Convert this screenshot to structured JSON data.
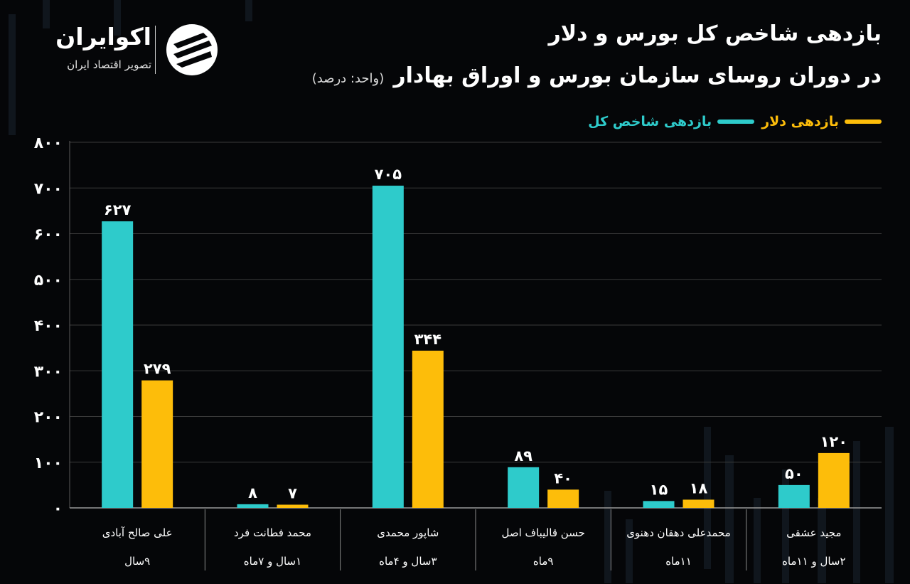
{
  "logo": {
    "name": "اکوایران",
    "tagline": "تصویر اقتصاد ایران"
  },
  "title": {
    "line1": "بازدهی شاخص کل بورس و دلار",
    "line2": "در دوران روسای سازمان بورس و اوراق بهادار",
    "unit": "(واحد: درصد)"
  },
  "colors": {
    "background": "#050608",
    "index": "#2ecbcb",
    "dollar": "#fdbd0a",
    "grid": "#3a3a3a"
  },
  "chart_data": {
    "type": "bar",
    "ylim": [
      0,
      800
    ],
    "yticks": [
      "۰",
      "۱۰۰",
      "۲۰۰",
      "۳۰۰",
      "۴۰۰",
      "۵۰۰",
      "۶۰۰",
      "۷۰۰",
      "۸۰۰"
    ],
    "grid": true,
    "legend_position": "top-right",
    "categories": [
      {
        "name": "علی صالح آبادی",
        "duration": "۹سال"
      },
      {
        "name": "محمد فطانت فرد",
        "duration": "۱سال و ۷ماه"
      },
      {
        "name": "شاپور محمدی",
        "duration": "۳سال و ۴ماه"
      },
      {
        "name": "حسن قالیباف اصل",
        "duration": "۹ماه"
      },
      {
        "name": "محمدعلی دهقان دهنوی",
        "duration": "۱۱ماه"
      },
      {
        "name": "مجید عشقی",
        "duration": "۲سال و ۱۱ماه"
      }
    ],
    "series": [
      {
        "name": "بازدهی شاخص کل",
        "color": "#2ecbcb",
        "values": [
          627,
          8,
          705,
          89,
          15,
          50
        ],
        "labels": [
          "۶۲۷",
          "۸",
          "۷۰۵",
          "۸۹",
          "۱۵",
          "۵۰"
        ]
      },
      {
        "name": "بازدهی دلار",
        "color": "#fdbd0a",
        "values": [
          279,
          7,
          344,
          40,
          18,
          120
        ],
        "labels": [
          "۲۷۹",
          "۷",
          "۳۴۴",
          "۴۰",
          "۱۸",
          "۱۲۰"
        ]
      }
    ]
  }
}
